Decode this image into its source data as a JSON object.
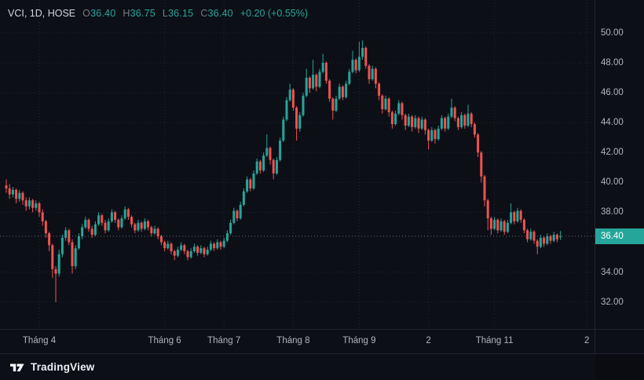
{
  "legend": {
    "title": "VCI, 1D, HOSE",
    "ohlc": [
      {
        "label": "O",
        "value": "36.40"
      },
      {
        "label": "H",
        "value": "36.75"
      },
      {
        "label": "L",
        "value": "36.15"
      },
      {
        "label": "C",
        "value": "36.40"
      }
    ],
    "change": "+0.20 (+0.55%)"
  },
  "price_axis": {
    "badge": {
      "text": "36.40",
      "price": 36.4
    }
  },
  "footer": {
    "brand": "TradingView"
  },
  "colors": {
    "up": "#26a69a",
    "down": "#ef5350",
    "axis_text": "#b2b5be",
    "grid": "#222634",
    "price_line": "#8a8e9b",
    "background": "#0d0f17"
  },
  "chart_data": {
    "type": "candlestick",
    "symbol": "VCI",
    "interval": "1D",
    "exchange": "HOSE",
    "last": {
      "open": 36.4,
      "high": 36.75,
      "low": 36.15,
      "close": 36.4,
      "change": 0.2,
      "change_pct": 0.55
    },
    "last_price": 36.4,
    "ylim": [
      30.2,
      52.2
    ],
    "y_ticks": [
      {
        "label": "50.00",
        "value": 50.0
      },
      {
        "label": "48.00",
        "value": 48.0
      },
      {
        "label": "46.00",
        "value": 46.0
      },
      {
        "label": "44.00",
        "value": 44.0
      },
      {
        "label": "42.00",
        "value": 42.0
      },
      {
        "label": "40.00",
        "value": 40.0
      },
      {
        "label": "38.00",
        "value": 38.0
      },
      {
        "label": "34.00",
        "value": 34.0
      },
      {
        "label": "32.00",
        "value": 32.0
      }
    ],
    "x_labels": [
      {
        "text": "Tháng 4",
        "i": 10
      },
      {
        "text": "Tháng 6",
        "i": 48
      },
      {
        "text": "Tháng 7",
        "i": 66
      },
      {
        "text": "Tháng 8",
        "i": 87
      },
      {
        "text": "Tháng 9",
        "i": 107
      },
      {
        "text": "2",
        "i": 128
      },
      {
        "text": "Tháng 11",
        "i": 148
      },
      {
        "text": "2",
        "i": 176
      }
    ],
    "candles": [
      [
        39.8,
        40.2,
        39.3,
        39.6
      ],
      [
        39.6,
        39.9,
        38.9,
        39.2
      ],
      [
        39.2,
        39.7,
        39.0,
        39.5
      ],
      [
        39.5,
        39.6,
        38.6,
        38.9
      ],
      [
        38.9,
        39.5,
        38.7,
        39.3
      ],
      [
        39.3,
        39.4,
        38.5,
        38.8
      ],
      [
        38.8,
        39.0,
        38.1,
        38.4
      ],
      [
        38.4,
        39.0,
        38.2,
        38.8
      ],
      [
        38.8,
        38.9,
        38.0,
        38.3
      ],
      [
        38.3,
        38.8,
        38.1,
        38.6
      ],
      [
        38.6,
        38.7,
        37.7,
        38.0
      ],
      [
        38.0,
        38.2,
        37.1,
        37.4
      ],
      [
        37.4,
        37.5,
        36.3,
        36.6
      ],
      [
        36.6,
        36.7,
        35.4,
        35.8
      ],
      [
        35.8,
        35.9,
        33.6,
        34.2
      ],
      [
        34.2,
        34.4,
        32.0,
        33.9
      ],
      [
        33.9,
        35.5,
        33.7,
        35.2
      ],
      [
        35.2,
        36.5,
        35.0,
        36.3
      ],
      [
        36.3,
        37.0,
        36.1,
        36.8
      ],
      [
        36.8,
        36.9,
        35.8,
        36.0
      ],
      [
        36.0,
        36.2,
        33.9,
        34.4
      ],
      [
        34.4,
        35.8,
        34.2,
        35.6
      ],
      [
        35.6,
        36.6,
        35.5,
        36.4
      ],
      [
        36.4,
        37.2,
        36.2,
        37.0
      ],
      [
        37.0,
        37.7,
        36.9,
        37.5
      ],
      [
        37.5,
        37.6,
        36.7,
        36.9
      ],
      [
        36.9,
        37.1,
        36.3,
        36.5
      ],
      [
        36.5,
        37.4,
        36.4,
        37.2
      ],
      [
        37.2,
        38.0,
        37.1,
        37.8
      ],
      [
        37.8,
        37.9,
        37.1,
        37.3
      ],
      [
        37.3,
        37.5,
        36.6,
        36.8
      ],
      [
        36.8,
        37.6,
        36.7,
        37.4
      ],
      [
        37.4,
        38.2,
        37.3,
        38.0
      ],
      [
        38.0,
        38.1,
        37.3,
        37.5
      ],
      [
        37.5,
        37.6,
        36.8,
        37.0
      ],
      [
        37.0,
        37.8,
        36.9,
        37.6
      ],
      [
        37.6,
        38.4,
        37.5,
        38.2
      ],
      [
        38.2,
        38.3,
        37.5,
        37.7
      ],
      [
        37.7,
        37.8,
        37.0,
        37.2
      ],
      [
        37.2,
        37.3,
        36.6,
        36.8
      ],
      [
        36.8,
        37.5,
        36.7,
        37.3
      ],
      [
        37.3,
        37.4,
        36.7,
        36.9
      ],
      [
        36.9,
        37.6,
        36.8,
        37.4
      ],
      [
        37.4,
        37.5,
        36.8,
        37.0
      ],
      [
        37.0,
        37.1,
        36.4,
        36.6
      ],
      [
        36.6,
        37.1,
        36.5,
        36.9
      ],
      [
        36.9,
        37.0,
        36.2,
        36.4
      ],
      [
        36.4,
        36.5,
        35.8,
        36.0
      ],
      [
        36.0,
        36.1,
        35.4,
        35.6
      ],
      [
        35.6,
        36.1,
        35.5,
        35.9
      ],
      [
        35.9,
        36.0,
        35.2,
        35.4
      ],
      [
        35.4,
        35.5,
        34.8,
        35.1
      ],
      [
        35.1,
        35.7,
        35.0,
        35.5
      ],
      [
        35.5,
        36.0,
        35.4,
        35.8
      ],
      [
        35.8,
        35.9,
        35.2,
        35.4
      ],
      [
        35.4,
        35.5,
        34.8,
        35.0
      ],
      [
        35.0,
        35.6,
        34.9,
        35.4
      ],
      [
        35.4,
        35.9,
        35.3,
        35.7
      ],
      [
        35.7,
        35.8,
        35.1,
        35.3
      ],
      [
        35.3,
        35.8,
        35.2,
        35.6
      ],
      [
        35.6,
        35.7,
        35.0,
        35.2
      ],
      [
        35.2,
        35.7,
        35.1,
        35.5
      ],
      [
        35.5,
        36.1,
        35.4,
        35.9
      ],
      [
        35.9,
        36.0,
        35.4,
        35.6
      ],
      [
        35.6,
        36.2,
        35.5,
        36.0
      ],
      [
        36.0,
        36.1,
        35.5,
        35.7
      ],
      [
        35.7,
        36.3,
        35.6,
        36.1
      ],
      [
        36.1,
        36.8,
        36.0,
        36.6
      ],
      [
        36.6,
        37.5,
        36.5,
        37.3
      ],
      [
        37.3,
        38.3,
        37.2,
        38.1
      ],
      [
        38.1,
        38.2,
        37.4,
        37.6
      ],
      [
        37.6,
        38.7,
        37.5,
        38.5
      ],
      [
        38.5,
        39.6,
        38.4,
        39.4
      ],
      [
        39.4,
        40.4,
        39.3,
        40.2
      ],
      [
        40.2,
        40.3,
        39.4,
        39.6
      ],
      [
        39.6,
        40.8,
        39.5,
        40.6
      ],
      [
        40.6,
        41.6,
        40.5,
        41.4
      ],
      [
        41.4,
        41.5,
        40.6,
        40.8
      ],
      [
        40.8,
        42.0,
        40.7,
        41.8
      ],
      [
        41.8,
        43.2,
        41.7,
        42.3
      ],
      [
        42.3,
        42.4,
        41.2,
        41.5
      ],
      [
        41.5,
        41.6,
        40.2,
        40.6
      ],
      [
        40.6,
        41.7,
        40.5,
        41.5
      ],
      [
        41.5,
        43.0,
        41.4,
        42.8
      ],
      [
        42.8,
        44.4,
        42.7,
        44.2
      ],
      [
        44.2,
        45.7,
        44.1,
        45.5
      ],
      [
        45.5,
        46.6,
        45.4,
        46.2
      ],
      [
        46.2,
        46.3,
        44.8,
        45.0
      ],
      [
        45.0,
        45.1,
        42.8,
        43.6
      ],
      [
        43.6,
        44.7,
        43.4,
        44.5
      ],
      [
        44.5,
        46.0,
        44.4,
        45.8
      ],
      [
        45.8,
        47.6,
        45.7,
        47.0
      ],
      [
        47.0,
        47.1,
        46.0,
        46.3
      ],
      [
        46.3,
        48.2,
        46.2,
        47.2
      ],
      [
        47.2,
        47.3,
        46.1,
        46.4
      ],
      [
        46.4,
        47.6,
        46.3,
        47.4
      ],
      [
        47.4,
        48.6,
        47.3,
        48.0
      ],
      [
        48.0,
        48.1,
        46.6,
        46.8
      ],
      [
        46.8,
        46.9,
        45.4,
        45.6
      ],
      [
        45.6,
        45.7,
        44.2,
        44.8
      ],
      [
        44.8,
        45.8,
        44.7,
        45.6
      ],
      [
        45.6,
        46.6,
        45.5,
        46.4
      ],
      [
        46.4,
        46.5,
        45.5,
        45.7
      ],
      [
        45.7,
        46.8,
        45.6,
        46.6
      ],
      [
        46.6,
        47.6,
        46.5,
        47.4
      ],
      [
        47.4,
        48.8,
        47.3,
        48.2
      ],
      [
        48.2,
        48.3,
        47.3,
        47.5
      ],
      [
        47.5,
        49.4,
        47.4,
        48.4
      ],
      [
        48.4,
        49.5,
        48.2,
        49.0
      ],
      [
        49.0,
        49.1,
        47.6,
        47.8
      ],
      [
        47.8,
        47.9,
        46.6,
        46.9
      ],
      [
        46.9,
        47.8,
        46.8,
        47.6
      ],
      [
        47.6,
        47.7,
        46.3,
        46.6
      ],
      [
        46.6,
        46.7,
        45.5,
        45.8
      ],
      [
        45.8,
        45.9,
        44.6,
        44.9
      ],
      [
        44.9,
        45.8,
        44.8,
        45.6
      ],
      [
        45.6,
        45.7,
        44.4,
        44.7
      ],
      [
        44.7,
        44.8,
        43.6,
        43.9
      ],
      [
        43.9,
        44.8,
        43.8,
        44.6
      ],
      [
        44.6,
        45.5,
        44.5,
        45.3
      ],
      [
        45.3,
        45.4,
        44.2,
        44.5
      ],
      [
        44.5,
        44.6,
        43.5,
        43.8
      ],
      [
        43.8,
        44.6,
        43.7,
        44.4
      ],
      [
        44.4,
        44.5,
        43.4,
        43.7
      ],
      [
        43.7,
        44.5,
        43.6,
        44.3
      ],
      [
        44.3,
        44.4,
        43.3,
        43.6
      ],
      [
        43.6,
        44.4,
        43.5,
        44.2
      ],
      [
        44.2,
        44.3,
        43.2,
        43.5
      ],
      [
        43.5,
        43.6,
        42.2,
        42.8
      ],
      [
        42.8,
        43.7,
        42.7,
        43.5
      ],
      [
        43.5,
        43.6,
        42.6,
        42.9
      ],
      [
        42.9,
        43.8,
        42.8,
        43.6
      ],
      [
        43.6,
        44.5,
        43.5,
        44.3
      ],
      [
        44.3,
        44.4,
        43.4,
        43.6
      ],
      [
        43.6,
        44.6,
        43.5,
        44.4
      ],
      [
        44.4,
        45.6,
        44.3,
        45.0
      ],
      [
        45.0,
        45.1,
        44.1,
        44.3
      ],
      [
        44.3,
        44.4,
        43.5,
        43.7
      ],
      [
        43.7,
        44.7,
        43.6,
        44.5
      ],
      [
        44.5,
        44.6,
        43.6,
        43.8
      ],
      [
        43.8,
        45.2,
        43.7,
        44.6
      ],
      [
        44.6,
        44.7,
        43.7,
        43.9
      ],
      [
        43.9,
        44.0,
        43.0,
        43.2
      ],
      [
        43.2,
        43.3,
        41.7,
        42.0
      ],
      [
        42.0,
        42.1,
        40.0,
        40.4
      ],
      [
        40.4,
        40.5,
        38.4,
        38.8
      ],
      [
        38.8,
        38.9,
        36.8,
        37.6
      ],
      [
        37.6,
        37.7,
        36.5,
        36.9
      ],
      [
        36.9,
        37.7,
        36.8,
        37.5
      ],
      [
        37.5,
        37.6,
        36.6,
        36.8
      ],
      [
        36.8,
        37.6,
        36.7,
        37.4
      ],
      [
        37.4,
        37.5,
        36.5,
        36.7
      ],
      [
        36.7,
        37.5,
        36.6,
        37.3
      ],
      [
        37.3,
        38.6,
        37.2,
        38.0
      ],
      [
        38.0,
        38.1,
        37.2,
        37.4
      ],
      [
        37.4,
        38.3,
        37.3,
        38.1
      ],
      [
        38.1,
        38.2,
        37.3,
        37.5
      ],
      [
        37.5,
        37.6,
        36.6,
        36.8
      ],
      [
        36.8,
        36.9,
        36.0,
        36.2
      ],
      [
        36.2,
        36.9,
        36.1,
        36.7
      ],
      [
        36.7,
        36.8,
        35.9,
        36.1
      ],
      [
        36.1,
        36.2,
        35.2,
        35.7
      ],
      [
        35.7,
        36.5,
        35.6,
        36.3
      ],
      [
        36.3,
        36.4,
        35.7,
        35.9
      ],
      [
        35.9,
        36.6,
        35.8,
        36.4
      ],
      [
        36.4,
        36.5,
        35.9,
        36.1
      ],
      [
        36.1,
        36.7,
        36.0,
        36.5
      ],
      [
        36.5,
        36.6,
        36.0,
        36.2
      ],
      [
        36.4,
        36.75,
        36.15,
        36.4
      ]
    ]
  }
}
